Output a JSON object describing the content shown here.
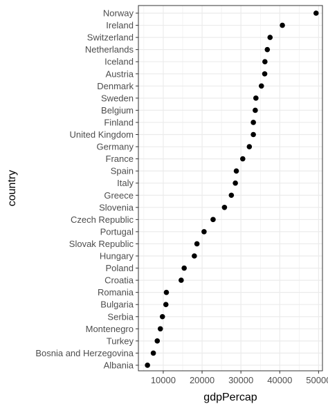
{
  "chart_data": {
    "type": "scatter",
    "title": "",
    "xlabel": "gdpPercap",
    "ylabel": "country",
    "xlim": [
      5000,
      50000
    ],
    "xticks": [
      10000,
      20000,
      30000,
      40000,
      50000
    ],
    "xtick_labels": [
      "10000",
      "20000",
      "30000",
      "40000",
      "50000"
    ],
    "grid": true,
    "legend": "none",
    "point_color": "#000000",
    "categories": [
      "Albania",
      "Bosnia and Herzegovina",
      "Turkey",
      "Montenegro",
      "Serbia",
      "Bulgaria",
      "Romania",
      "Croatia",
      "Poland",
      "Hungary",
      "Slovak Republic",
      "Portugal",
      "Czech Republic",
      "Slovenia",
      "Greece",
      "Italy",
      "Spain",
      "France",
      "Germany",
      "United Kingdom",
      "Finland",
      "Belgium",
      "Sweden",
      "Denmark",
      "Austria",
      "Iceland",
      "Netherlands",
      "Switzerland",
      "Ireland",
      "Norway"
    ],
    "values": [
      5937,
      7446,
      8458,
      9254,
      9787,
      10681,
      10808,
      14619,
      15390,
      18009,
      18678,
      20510,
      22833,
      25768,
      27538,
      28570,
      28821,
      30470,
      32170,
      33203,
      33207,
      33693,
      33860,
      35278,
      36126,
      36181,
      36798,
      37506,
      40676,
      49357
    ]
  }
}
